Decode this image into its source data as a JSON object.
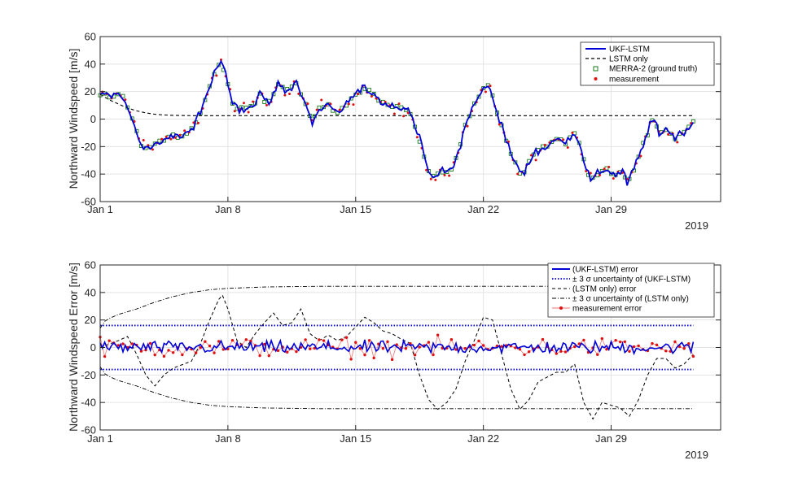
{
  "chart_data": [
    {
      "type": "line",
      "ylabel": "Northward Windspeed [m/s]",
      "xlim": [
        0,
        34
      ],
      "ylim": [
        -60,
        60
      ],
      "yticks": [
        60,
        40,
        20,
        0,
        -20,
        -40,
        -60
      ],
      "xticks": [
        {
          "day": 0,
          "label": "Jan 1"
        },
        {
          "day": 7,
          "label": "Jan 8"
        },
        {
          "day": 14,
          "label": "Jan 15"
        },
        {
          "day": 21,
          "label": "Jan 22"
        },
        {
          "day": 28,
          "label": "Jan 29"
        }
      ],
      "year_label": "2019",
      "grid": true,
      "legend_position": "top-right",
      "legend": [
        "UKF-LSTM",
        "LSTM only",
        "MERRA-2 (ground truth)",
        "measurement"
      ],
      "colors": {
        "ukf": "#0000d8",
        "lstm": "#000000",
        "merra": "#1a7a1a",
        "meas": "#e01010"
      },
      "truth_anchors": [
        [
          0,
          18
        ],
        [
          0.4,
          18
        ],
        [
          0.7,
          16
        ],
        [
          1.0,
          19
        ],
        [
          1.3,
          15
        ],
        [
          1.6,
          5
        ],
        [
          2.0,
          -10
        ],
        [
          2.3,
          -20
        ],
        [
          2.7,
          -22
        ],
        [
          3.0,
          -18
        ],
        [
          3.5,
          -15
        ],
        [
          4.0,
          -12
        ],
        [
          4.5,
          -13
        ],
        [
          5.0,
          -8
        ],
        [
          5.5,
          5
        ],
        [
          5.9,
          20
        ],
        [
          6.3,
          35
        ],
        [
          6.6,
          40
        ],
        [
          6.9,
          32
        ],
        [
          7.2,
          12
        ],
        [
          7.6,
          8
        ],
        [
          8.0,
          9
        ],
        [
          8.4,
          10
        ],
        [
          8.8,
          20
        ],
        [
          9.1,
          10
        ],
        [
          9.4,
          15
        ],
        [
          9.8,
          26
        ],
        [
          10.1,
          20
        ],
        [
          10.4,
          22
        ],
        [
          10.7,
          28
        ],
        [
          11.0,
          18
        ],
        [
          11.3,
          10
        ],
        [
          11.6,
          -2
        ],
        [
          12.0,
          8
        ],
        [
          12.5,
          10
        ],
        [
          13.0,
          5
        ],
        [
          13.5,
          10
        ],
        [
          14.0,
          18
        ],
        [
          14.5,
          22
        ],
        [
          15.0,
          18
        ],
        [
          15.5,
          12
        ],
        [
          16.0,
          10
        ],
        [
          16.5,
          8
        ],
        [
          17.0,
          5
        ],
        [
          17.5,
          -15
        ],
        [
          17.9,
          -35
        ],
        [
          18.3,
          -42
        ],
        [
          18.8,
          -38
        ],
        [
          19.2,
          -40
        ],
        [
          19.6,
          -25
        ],
        [
          20.0,
          -5
        ],
        [
          20.5,
          10
        ],
        [
          21.0,
          22
        ],
        [
          21.3,
          25
        ],
        [
          21.6,
          12
        ],
        [
          22.0,
          -5
        ],
        [
          22.5,
          -25
        ],
        [
          23.0,
          -40
        ],
        [
          23.3,
          -38
        ],
        [
          23.7,
          -25
        ],
        [
          24.2,
          -22
        ],
        [
          24.6,
          -18
        ],
        [
          25.0,
          -15
        ],
        [
          25.5,
          -17
        ],
        [
          26.0,
          -10
        ],
        [
          26.3,
          -18
        ],
        [
          26.6,
          -35
        ],
        [
          26.9,
          -44
        ],
        [
          27.3,
          -40
        ],
        [
          27.8,
          -35
        ],
        [
          28.2,
          -42
        ],
        [
          28.6,
          -38
        ],
        [
          28.9,
          -47
        ],
        [
          29.3,
          -35
        ],
        [
          29.7,
          -20
        ],
        [
          30.0,
          -10
        ],
        [
          30.3,
          0
        ],
        [
          30.7,
          -10
        ],
        [
          31.1,
          -8
        ],
        [
          31.5,
          -13
        ],
        [
          31.9,
          -10
        ],
        [
          32.3,
          -5
        ],
        [
          32.5,
          -2
        ]
      ],
      "lstm_only": [
        [
          0,
          18
        ],
        [
          0.5,
          14
        ],
        [
          1.0,
          11
        ],
        [
          1.5,
          8
        ],
        [
          2.0,
          6
        ],
        [
          2.5,
          4.5
        ],
        [
          3.0,
          3.5
        ],
        [
          3.5,
          3
        ],
        [
          4.0,
          2.7
        ],
        [
          5.0,
          2.5
        ],
        [
          6.0,
          2.5
        ],
        [
          10.0,
          2.5
        ],
        [
          20.0,
          2.5
        ],
        [
          25.0,
          2.5
        ],
        [
          30.0,
          2.5
        ],
        [
          32.5,
          2.5
        ]
      ]
    },
    {
      "type": "line",
      "ylabel": "Northward Windspeed Error [m/s]",
      "xlim": [
        0,
        34
      ],
      "ylim": [
        -60,
        60
      ],
      "yticks": [
        60,
        40,
        20,
        0,
        -20,
        -40,
        -60
      ],
      "xticks": [
        {
          "day": 0,
          "label": "Jan 1"
        },
        {
          "day": 7,
          "label": "Jan 8"
        },
        {
          "day": 14,
          "label": "Jan 15"
        },
        {
          "day": 21,
          "label": "Jan 22"
        },
        {
          "day": 28,
          "label": "Jan 29"
        }
      ],
      "year_label": "2019",
      "grid": true,
      "legend_position": "top-right",
      "legend": [
        "(UKF-LSTM) error",
        "± 3 σ uncertainty of (UKF-LSTM)",
        "(LSTM only) error",
        "± 3 σ uncertainty of (LSTM only)",
        "measurement error"
      ],
      "ukf_sigma_bound": 16,
      "lstm_sigma_anchors": [
        [
          0,
          14
        ],
        [
          0.3,
          20
        ],
        [
          1.0,
          24
        ],
        [
          2.0,
          28
        ],
        [
          3.0,
          33
        ],
        [
          4.0,
          37
        ],
        [
          5.0,
          40
        ],
        [
          6.0,
          42
        ],
        [
          7.0,
          43
        ],
        [
          9.0,
          44
        ],
        [
          12.0,
          44.5
        ],
        [
          32.5,
          44.5
        ]
      ],
      "lstm_error_anchors": [
        [
          0,
          0
        ],
        [
          1.0,
          5
        ],
        [
          1.5,
          8
        ],
        [
          2.0,
          -5
        ],
        [
          2.5,
          -20
        ],
        [
          3.0,
          -28
        ],
        [
          3.5,
          -20
        ],
        [
          4.0,
          -15
        ],
        [
          5.0,
          -10
        ],
        [
          5.5,
          3
        ],
        [
          6.0,
          20
        ],
        [
          6.5,
          35
        ],
        [
          6.7,
          38
        ],
        [
          7.0,
          28
        ],
        [
          7.5,
          5
        ],
        [
          8.0,
          0
        ],
        [
          8.5,
          10
        ],
        [
          9.0,
          18
        ],
        [
          9.5,
          25
        ],
        [
          10.0,
          16
        ],
        [
          10.5,
          18
        ],
        [
          11.0,
          28
        ],
        [
          11.5,
          10
        ],
        [
          12.0,
          5
        ],
        [
          12.5,
          9
        ],
        [
          13.0,
          5
        ],
        [
          13.5,
          8
        ],
        [
          14.0,
          15
        ],
        [
          14.5,
          22
        ],
        [
          15.0,
          18
        ],
        [
          15.5,
          12
        ],
        [
          16.0,
          10
        ],
        [
          16.5,
          6
        ],
        [
          17.0,
          3
        ],
        [
          17.5,
          -20
        ],
        [
          18.0,
          -38
        ],
        [
          18.5,
          -45
        ],
        [
          19.0,
          -40
        ],
        [
          19.5,
          -30
        ],
        [
          20.0,
          -10
        ],
        [
          20.5,
          5
        ],
        [
          21.0,
          22
        ],
        [
          21.5,
          20
        ],
        [
          22.0,
          -5
        ],
        [
          22.5,
          -30
        ],
        [
          23.0,
          -45
        ],
        [
          23.5,
          -38
        ],
        [
          24.0,
          -25
        ],
        [
          25.0,
          -18
        ],
        [
          25.5,
          -18
        ],
        [
          26.0,
          -12
        ],
        [
          26.5,
          -40
        ],
        [
          27.0,
          -52
        ],
        [
          27.5,
          -40
        ],
        [
          28.0,
          -42
        ],
        [
          28.5,
          -44
        ],
        [
          29.0,
          -50
        ],
        [
          29.5,
          -38
        ],
        [
          30.0,
          -20
        ],
        [
          30.5,
          -8
        ],
        [
          31.0,
          -8
        ],
        [
          31.5,
          -15
        ],
        [
          32.0,
          -12
        ],
        [
          32.5,
          -5
        ]
      ]
    }
  ]
}
